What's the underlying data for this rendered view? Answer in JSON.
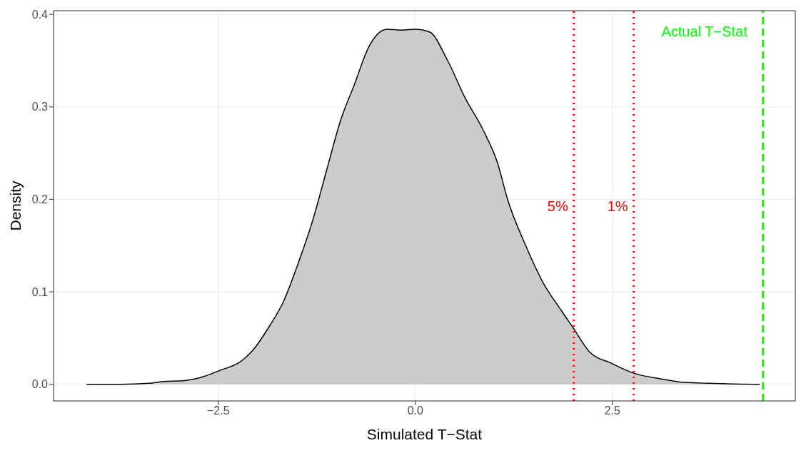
{
  "chart_data": {
    "type": "area",
    "xlabel": "Simulated T−Stat",
    "ylabel": "Density",
    "x": [
      -4.17,
      -3.74,
      -3.38,
      -3.2,
      -2.93,
      -2.7,
      -2.48,
      -2.21,
      -2.07,
      -1.85,
      -1.67,
      -1.49,
      -1.31,
      -1.13,
      -0.95,
      -0.77,
      -0.59,
      -0.36,
      -0.18,
      0,
      0.18,
      0.41,
      0.63,
      0.86,
      1.04,
      1.17,
      1.4,
      1.62,
      1.85,
      2.01,
      2.21,
      2.48,
      2.77,
      3.11,
      3.42,
      3.74,
      4.37
    ],
    "series": [
      {
        "color": "#cccccc",
        "values": [
          0,
          0,
          0.001,
          0.003,
          0.004,
          0.008,
          0.015,
          0.025,
          0.036,
          0.063,
          0.09,
          0.13,
          0.175,
          0.23,
          0.285,
          0.325,
          0.365,
          0.384,
          0.383,
          0.384,
          0.381,
          0.35,
          0.31,
          0.275,
          0.24,
          0.2,
          0.15,
          0.11,
          0.08,
          0.06,
          0.035,
          0.023,
          0.012,
          0.006,
          0.002,
          0.001,
          0
        ]
      }
    ],
    "xlim": [
      -4.59,
      4.82
    ],
    "ylim": [
      -0.018,
      0.404
    ],
    "xticks": [
      {
        "value": -2.5,
        "label": "−2.5"
      },
      {
        "value": 0,
        "label": "0.0"
      },
      {
        "value": 2.5,
        "label": "2.5"
      }
    ],
    "yticks": [
      {
        "value": 0,
        "label": "0.0"
      },
      {
        "value": 0.1,
        "label": "0.1"
      },
      {
        "value": 0.2,
        "label": "0.2"
      },
      {
        "value": 0.3,
        "label": "0.3"
      },
      {
        "value": 0.4,
        "label": "0.4"
      }
    ],
    "grid": true,
    "legend": false,
    "ref_lines": [
      {
        "axis": "x",
        "value": 2.01,
        "color": "#ff0000",
        "line_style": "dotted"
      },
      {
        "axis": "x",
        "value": 2.77,
        "color": "#ff0000",
        "line_style": "dotted"
      },
      {
        "axis": "x",
        "value": 4.41,
        "label": "Actual T−Stat",
        "color": "#00ff00",
        "line_style": "dashed"
      }
    ],
    "annotations": [
      "5%",
      "1%"
    ]
  }
}
